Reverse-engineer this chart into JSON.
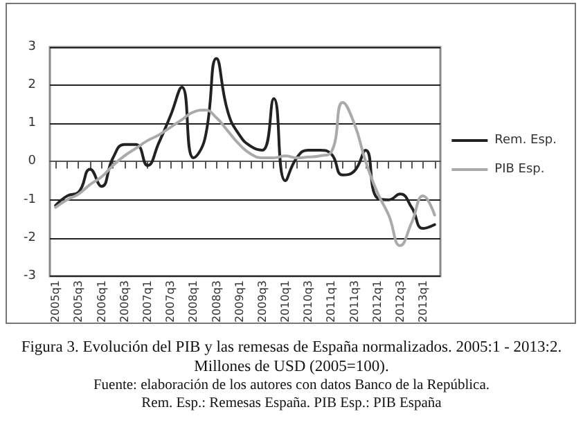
{
  "chart_data": {
    "type": "line",
    "title": "Figura 3. Evolución del PIB y las remesas de España normalizados. 2005:1 - 2013:2. Millones de USD (2005=100).",
    "annotations": [
      "Fuente: elaboración de los autores con datos Banco de la República.",
      "Rem. Esp.: Remesas España. PIB Esp.: PIB España"
    ],
    "categories": [
      "2005q1",
      null,
      "2005q3",
      null,
      "2006q1",
      null,
      "2006q3",
      null,
      "2007q1",
      null,
      "2007q3",
      null,
      "2008q1",
      null,
      "2008q3",
      null,
      "2009q1",
      null,
      "2009q3",
      null,
      "2010q1",
      null,
      "2010q3",
      null,
      "2011q1",
      null,
      "2011q3",
      null,
      "2012q1",
      null,
      "2012q3",
      null,
      "2013q1",
      null
    ],
    "series": [
      {
        "name": "Rem. Esp.",
        "color": "#222222",
        "values": [
          -1.15,
          -0.9,
          -0.8,
          -0.2,
          -0.65,
          0.1,
          0.45,
          0.45,
          -0.1,
          0.5,
          1.2,
          1.95,
          0.1,
          0.6,
          2.7,
          1.3,
          0.7,
          0.4,
          0.3,
          1.65,
          -0.5,
          0.1,
          0.3,
          0.3,
          0.2,
          -0.35,
          -0.25,
          0.3,
          -0.95,
          -1.0,
          -0.85,
          -1.2,
          -1.75,
          -1.65
        ]
      },
      {
        "name": "PIB Esp.",
        "color": "#aaaaaa",
        "values": [
          -1.2,
          -1.0,
          -0.85,
          -0.6,
          -0.4,
          -0.1,
          0.15,
          0.35,
          0.55,
          0.7,
          0.9,
          1.1,
          1.3,
          1.35,
          1.15,
          0.8,
          0.45,
          0.2,
          0.1,
          0.1,
          0.15,
          0.1,
          0.12,
          0.15,
          0.25,
          1.55,
          1.0,
          0.0,
          -0.8,
          -1.4,
          -2.2,
          -1.6,
          -0.9,
          -1.4
        ]
      }
    ],
    "ylim": [
      -3,
      3
    ],
    "yticks": [
      -3,
      -2,
      -1,
      0,
      1,
      2,
      3
    ],
    "grid": "y",
    "legend": "right",
    "marker": "none",
    "line_style": "solid"
  }
}
